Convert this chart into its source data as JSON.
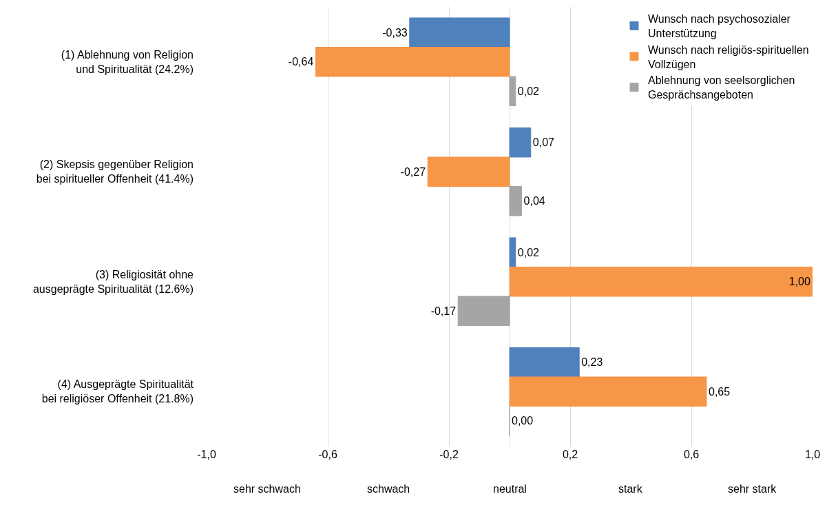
{
  "chart_data": {
    "type": "bar",
    "orientation": "horizontal",
    "categories": [
      "(1) Ablehnung von Religion\nund Spiritualität (24.2%)",
      "(2) Skepsis gegenüber Religion\nbei spiritueller Offenheit (41.4%)",
      "(3) Religiosität ohne\nausgeprägte Spiritualität (12.6%)",
      "(4) Ausgeprägte Spiritualität\nbei religiöser Offenheit (21.8%)"
    ],
    "series": [
      {
        "name": "Wunsch nach psychosozialer\nUnterstützung",
        "color": "#4f81bd",
        "values": [
          -0.33,
          0.07,
          0.02,
          0.23
        ],
        "value_labels": [
          "-0,33",
          "0,07",
          "0,02",
          "0,23"
        ]
      },
      {
        "name": "Wunsch nach religiös-spirituellen\nVollzügen",
        "color": "#f79646",
        "values": [
          -0.64,
          -0.27,
          1.0,
          0.65
        ],
        "value_labels": [
          "-0,64",
          "-0,27",
          "1,00",
          "0,65"
        ]
      },
      {
        "name": "Ablehnung von seelsorglichen\nGesprächsangeboten",
        "color": "#a5a5a5",
        "values": [
          0.02,
          0.04,
          -0.17,
          0.0
        ],
        "value_labels": [
          "0,02",
          "0,04",
          "-0,17",
          "0,00"
        ]
      }
    ],
    "xlim": [
      -1.0,
      1.0
    ],
    "xticks": [
      {
        "value": -1.0,
        "label": "-1,0"
      },
      {
        "value": -0.6,
        "label": "-0,6"
      },
      {
        "value": -0.2,
        "label": "-0,2"
      },
      {
        "value": 0,
        "label": null
      },
      {
        "value": 0.2,
        "label": "0,2"
      },
      {
        "value": 0.6,
        "label": "0,6"
      },
      {
        "value": 1.0,
        "label": "1,0"
      }
    ],
    "annotations": [
      "sehr schwach",
      "schwach",
      "neutral",
      "stark",
      "sehr stark"
    ],
    "grid": "x",
    "legend": "top right"
  }
}
